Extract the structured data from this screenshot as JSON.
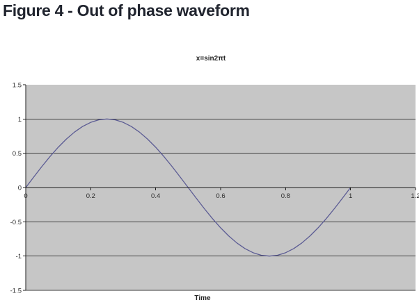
{
  "figure_title": "Figure 4 - Out of phase waveform",
  "colors": {
    "heading_text": "#20242e",
    "chart_text": "#2b2b2b",
    "plot_background": "#c6c6c6",
    "gridline": "#3f3f3f",
    "axis": "#1c1c1c",
    "series_line": "#5c5c94"
  },
  "chart_data": {
    "type": "line",
    "title": "x=sin2πt",
    "xlabel": "Time",
    "ylabel": "",
    "xlim": [
      0,
      1.2
    ],
    "ylim": [
      -1.5,
      1.5
    ],
    "grid": "horizontal",
    "legend": "none",
    "x_tick_labels": [
      "0",
      "0.2",
      "0.4",
      "0.6",
      "0.8",
      "1",
      "1.2"
    ],
    "x_tick_values": [
      0,
      0.2,
      0.4,
      0.6,
      0.8,
      1,
      1.2
    ],
    "y_tick_labels": [
      "1.5",
      "1",
      "0.5",
      "0",
      "-0.5",
      "-1",
      "-1.5"
    ],
    "y_tick_values": [
      1.5,
      1,
      0.5,
      0,
      -0.5,
      -1,
      -1.5
    ],
    "series": [
      {
        "name": "x=sin2πt",
        "t": [
          0,
          0.025,
          0.05,
          0.075,
          0.1,
          0.125,
          0.15,
          0.175,
          0.2,
          0.225,
          0.25,
          0.275,
          0.3,
          0.325,
          0.35,
          0.375,
          0.4,
          0.425,
          0.45,
          0.475,
          0.5,
          0.525,
          0.55,
          0.575,
          0.6,
          0.625,
          0.65,
          0.675,
          0.7,
          0.725,
          0.75,
          0.775,
          0.8,
          0.825,
          0.85,
          0.875,
          0.9,
          0.925,
          0.95,
          0.975,
          1
        ],
        "x": [
          0,
          0.156,
          0.309,
          0.454,
          0.588,
          0.707,
          0.809,
          0.891,
          0.951,
          0.988,
          1,
          0.988,
          0.951,
          0.891,
          0.809,
          0.707,
          0.588,
          0.454,
          0.309,
          0.156,
          0,
          -0.156,
          -0.309,
          -0.454,
          -0.588,
          -0.707,
          -0.809,
          -0.891,
          -0.951,
          -0.988,
          -1,
          -0.988,
          -0.951,
          -0.891,
          -0.809,
          -0.707,
          -0.588,
          -0.454,
          -0.309,
          -0.156,
          0
        ]
      }
    ]
  }
}
